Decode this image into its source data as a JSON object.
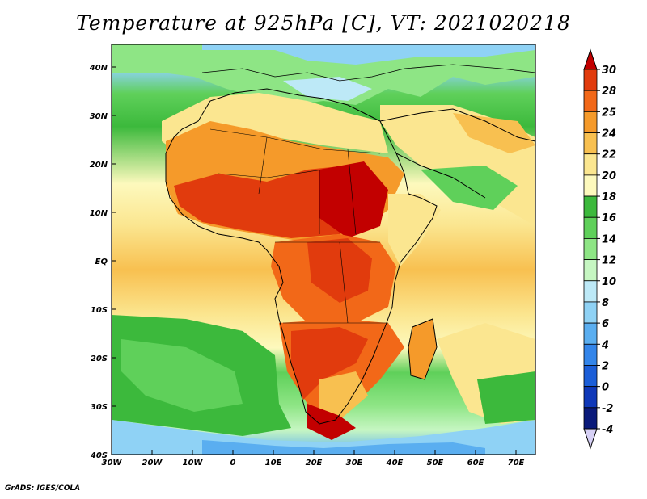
{
  "title": "Temperature at 925hPa [C], VT: 2021020218",
  "footer": "GrADS: IGES/COLA",
  "map": {
    "lon_range": [
      -30,
      75
    ],
    "lat_range": [
      -40,
      45
    ],
    "lat_labels": [
      "40N",
      "30N",
      "20N",
      "10N",
      "EQ",
      "10S",
      "20S",
      "30S",
      "40S"
    ],
    "lon_labels": [
      "30W",
      "20W",
      "10W",
      "0",
      "10E",
      "20E",
      "30E",
      "40E",
      "50E",
      "60E",
      "70E"
    ]
  },
  "colorbar": {
    "labels": [
      "30",
      "28",
      "25",
      "24",
      "22",
      "20",
      "18",
      "16",
      "14",
      "12",
      "10",
      "8",
      "6",
      "4",
      "2",
      "0",
      "-2",
      "-4"
    ],
    "colors": [
      "#c20000",
      "#e13b0d",
      "#f26818",
      "#f59a2a",
      "#f8c050",
      "#fbe690",
      "#fdf9bd",
      "#3cb93c",
      "#5fd05a",
      "#8ee585",
      "#c6f6c2",
      "#bde9f7",
      "#8fd2f5",
      "#5aaef0",
      "#3385ea",
      "#1b5ed8",
      "#0f38b8",
      "#0a1a7a",
      "#d6d0f5"
    ]
  }
}
